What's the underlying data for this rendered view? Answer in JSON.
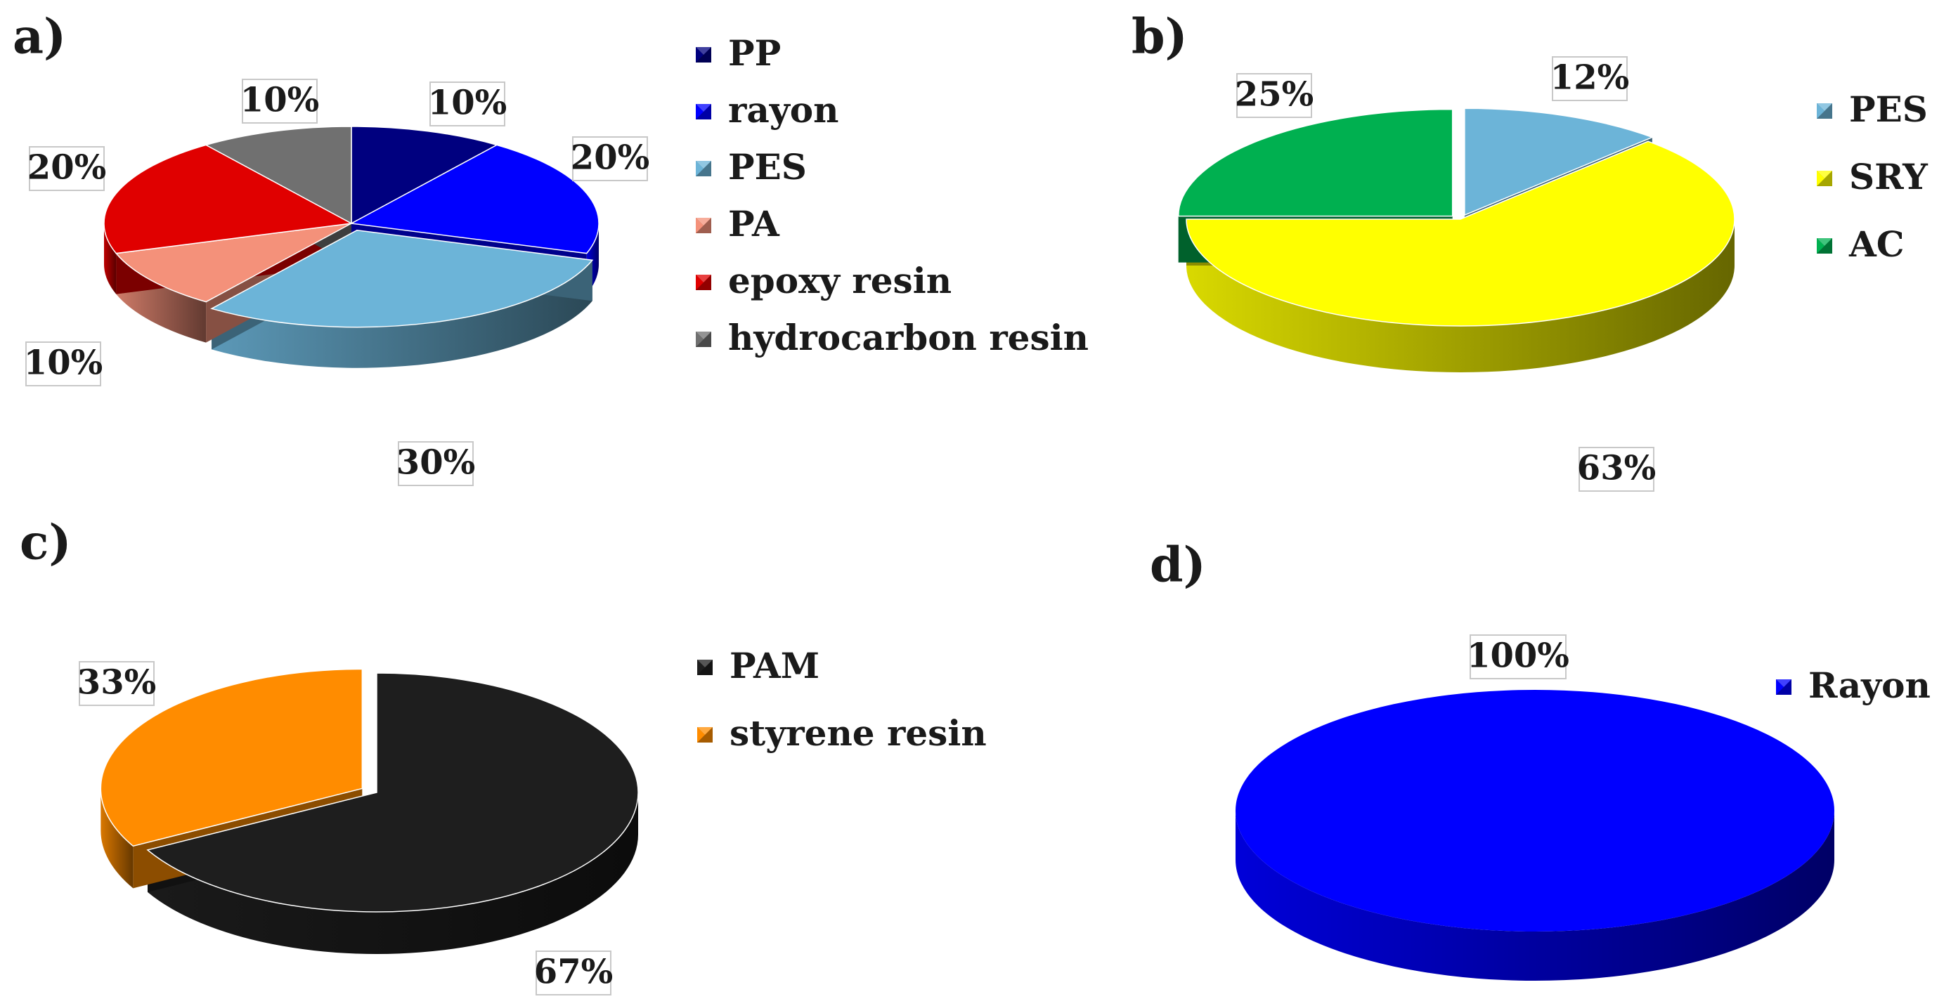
{
  "chart_data": [
    {
      "type": "pie",
      "panel_label": "a)",
      "legend_placement": "right",
      "slices": [
        {
          "label": "PP",
          "value": 10,
          "percent_label": "10%",
          "color": "#00007f"
        },
        {
          "label": "rayon",
          "value": 20,
          "percent_label": "20%",
          "color": "#0000ff"
        },
        {
          "label": "PES",
          "value": 30,
          "percent_label": "30%",
          "color": "#6cb4d8"
        },
        {
          "label": "PA",
          "value": 10,
          "percent_label": "10%",
          "color": "#f4917a"
        },
        {
          "label": "epoxy resin",
          "value": 20,
          "percent_label": "20%",
          "color": "#e00000"
        },
        {
          "label": "hydrocarbon resin",
          "value": 10,
          "percent_label": "10%",
          "color": "#707070"
        }
      ]
    },
    {
      "type": "pie",
      "panel_label": "b)",
      "legend_placement": "right",
      "slices": [
        {
          "label": "PES",
          "value": 12,
          "percent_label": "12%",
          "color": "#6cb4d8"
        },
        {
          "label": "SRY",
          "value": 63,
          "percent_label": "63%",
          "color": "#ffff00"
        },
        {
          "label": "AC",
          "value": 25,
          "percent_label": "25%",
          "color": "#00b050"
        }
      ]
    },
    {
      "type": "pie",
      "panel_label": "c)",
      "legend_placement": "right",
      "slices": [
        {
          "label": "PAM",
          "value": 67,
          "percent_label": "67%",
          "color": "#1e1e1e"
        },
        {
          "label": "styrene resin",
          "value": 33,
          "percent_label": "33%",
          "color": "#ff8c00"
        }
      ]
    },
    {
      "type": "pie",
      "panel_label": "d)",
      "legend_placement": "right",
      "slices": [
        {
          "label": "Rayon",
          "value": 100,
          "percent_label": "100%",
          "color": "#0000ff"
        }
      ]
    }
  ]
}
